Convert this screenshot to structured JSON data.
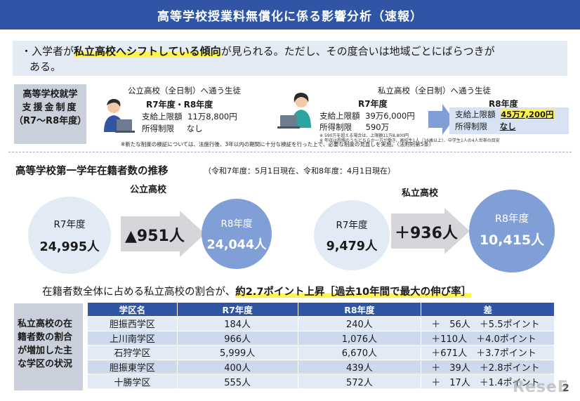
{
  "title": "高等学校授業料無償化に係る影響分析（速報）",
  "notice": {
    "prefix": "・入学者が",
    "highlight": "私立高校へシフトしている傾向",
    "suffix": "が見られる。ただし、その度合いは地域ごとにばらつきが",
    "line2": "ある。"
  },
  "support": {
    "label_line1": "高等学校就学",
    "label_line2": "支援金制度",
    "label_line3": "（R7～R8年度）",
    "public": {
      "heading": "公立高校（全日制）へ通う生徒",
      "years": "R7年度・R8年度",
      "row1_label": "支給上限額",
      "row1_value": "11万8,800円",
      "row2_label": "所得制限",
      "row2_value": "なし"
    },
    "private": {
      "heading": "私立高校（全日制）へ通う生徒",
      "r7_label": "R7年度",
      "r7_row1_label": "支給上限額",
      "r7_row1_value": "39万6,000円",
      "r7_row2_label": "所得制限",
      "r7_row2_value": "590万",
      "note1": "※ 590万を超える場合は、上限額11万8,800円",
      "note2": "※ 年収は両親のうちどちらか一方が働き、高校生1人（16歳以上）、中学生1人の4人世帯の目安",
      "r8_label": "R8年度",
      "r8_row1_label": "支給上限額",
      "r8_row1_value": "45万7,200円",
      "r8_row2_label": "所得制限",
      "r8_row2_value": "なし"
    },
    "footnote": "※新たな制度の検証については、法施行後、3年以内の期間に十分な検証を行った上で、必要な制度の見直しを実施。（法附則第5条）"
  },
  "enrollment": {
    "title": "高等学校第一学年在籍者数の推移",
    "subtitle": "（令和7年度：5月1日現在、令和8年度：4月1日現在）",
    "public": {
      "label": "公立高校",
      "r7_year": "R7年度",
      "r7_count": "24,995人",
      "change": "▲951人",
      "r8_year": "R8年度",
      "r8_count": "24,044人"
    },
    "private": {
      "label": "私立高校",
      "r7_year": "R7年度",
      "r7_count": "9,479人",
      "change": "＋936人",
      "r8_year": "R8年度",
      "r8_count": "10,415人"
    }
  },
  "summary": {
    "prefix": "在籍者数全体に占める私立高校の割合が、",
    "highlight": "約2.7ポイント上昇［過去10年間で最大の伸び率］"
  },
  "regions": {
    "label_line1": "私立高校の在",
    "label_line2": "籍者数の割合",
    "label_line3": "が増加した主",
    "label_line4": "な学区の状況",
    "headers": [
      "学区名",
      "R7年度",
      "R8年度",
      "差"
    ],
    "rows": [
      {
        "name": "胆振西学区",
        "r7": "184人",
        "r8": "240人",
        "diff": "＋　56人　＋5.5ポイント"
      },
      {
        "name": "上川南学区",
        "r7": "966人",
        "r8": "1,076人",
        "diff": "＋110人　＋4.0ポイント"
      },
      {
        "name": "石狩学区",
        "r7": "5,999人",
        "r8": "6,670人",
        "diff": "＋671人　＋3.7ポイント"
      },
      {
        "name": "胆振東学区",
        "r7": "400人",
        "r8": "439人",
        "diff": "＋　39人　＋2.8ポイント"
      },
      {
        "name": "十勝学区",
        "r7": "555人",
        "r8": "572人",
        "diff": "＋　17人　＋1.4ポイント"
      }
    ]
  },
  "page_number": "2",
  "watermark": "ReseE"
}
